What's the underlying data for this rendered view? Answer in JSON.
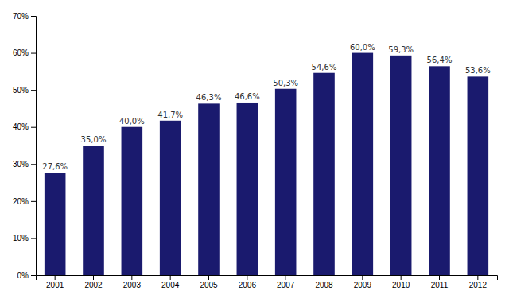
{
  "chart_data": {
    "type": "bar",
    "categories": [
      "2001",
      "2002",
      "2003",
      "2004",
      "2005",
      "2006",
      "2007",
      "2008",
      "2009",
      "2010",
      "2011",
      "2012"
    ],
    "values": [
      0.276,
      0.35,
      0.4,
      0.417,
      0.463,
      0.466,
      0.503,
      0.546,
      0.6,
      0.593,
      0.564,
      0.536
    ],
    "value_labels": [
      "27,6%",
      "35,0%",
      "40,0%",
      "41,7%",
      "46,3%",
      "46,6%",
      "50,3%",
      "54,6%",
      "60,0%",
      "59,3%",
      "56,4%",
      "53,6%"
    ],
    "color": "#1a1a6e",
    "ylim": [
      0,
      0.7
    ],
    "yticks": [
      {
        "value": 0.0,
        "label": "0%"
      },
      {
        "value": 0.1,
        "label": "10%"
      },
      {
        "value": 0.2,
        "label": "20%"
      },
      {
        "value": 0.3,
        "label": "30%"
      },
      {
        "value": 0.4,
        "label": "40%"
      },
      {
        "value": 0.5,
        "label": "50%"
      },
      {
        "value": 0.6,
        "label": "60%"
      },
      {
        "value": 0.7,
        "label": "70%"
      }
    ],
    "data_labels": true,
    "grid": false
  }
}
